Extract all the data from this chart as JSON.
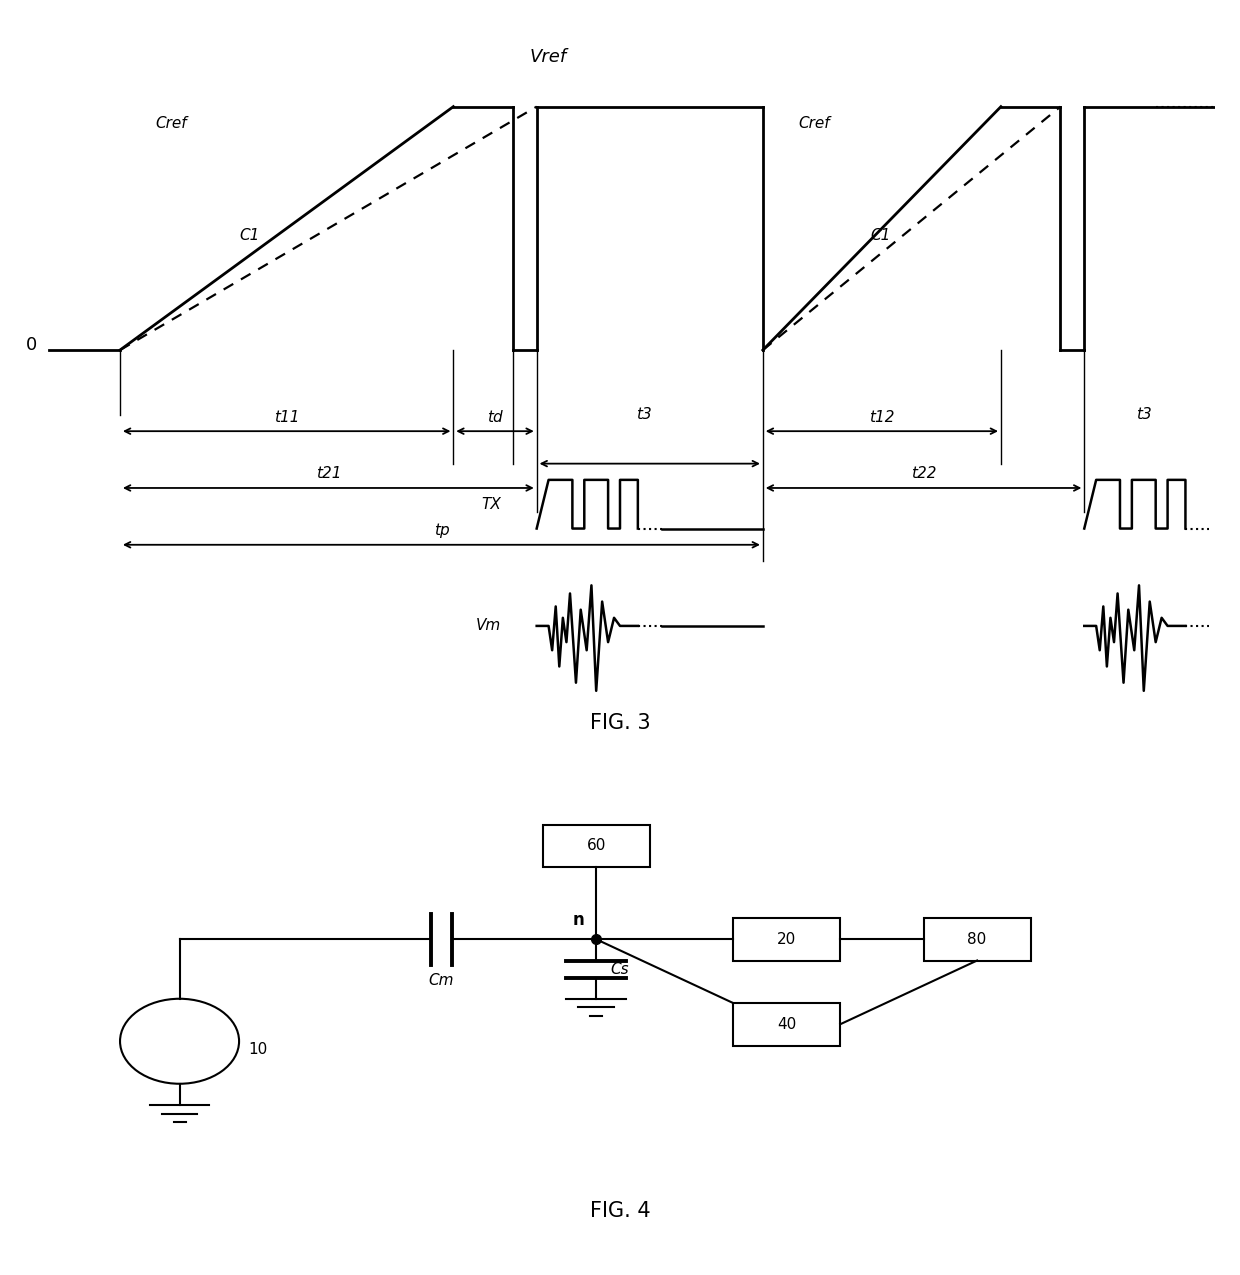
{
  "fig_width": 12.4,
  "fig_height": 12.75,
  "bg_color": "#ffffff",
  "line_color": "#000000",
  "fig3_title": "FIG. 3",
  "fig4_title": "FIG. 4",
  "fig3": {
    "vref_label": "Vref",
    "zero_label": "0",
    "cref_label": "Cref",
    "c1_label": "C1",
    "tx_label": "TX",
    "vm_label": "Vm",
    "t11_label": "t11",
    "td_label": "td",
    "t21_label": "t21",
    "tp_label": "tp",
    "t3_label1": "t3",
    "t12_label": "t12",
    "t22_label": "t22",
    "t3_label2": "t3"
  },
  "fig4": {
    "node_label": "n",
    "cm_label": "Cm",
    "cs_label": "Cs",
    "box10": "10",
    "box20": "20",
    "box40": "40",
    "box60": "60",
    "box80": "80"
  }
}
